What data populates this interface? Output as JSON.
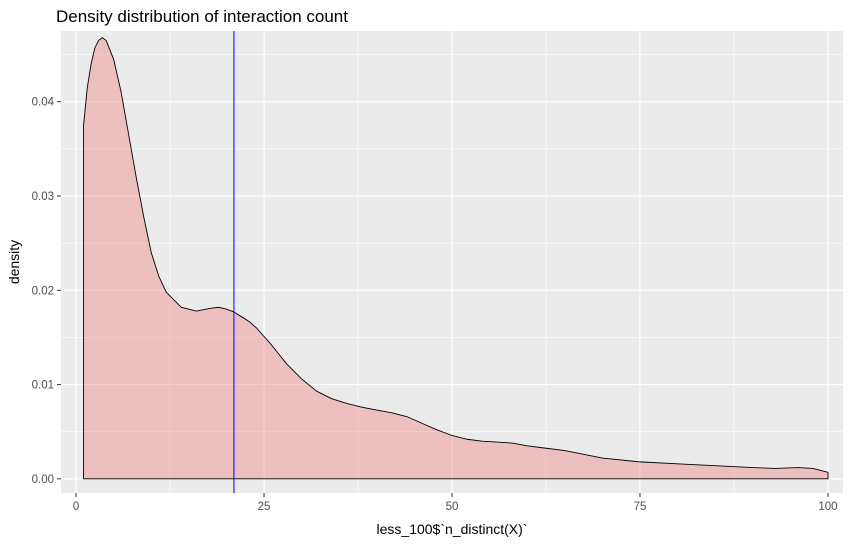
{
  "chart_data": {
    "type": "area",
    "title": "Density distribution of interaction count",
    "xlabel": "less_100$`n_distinct(X)`",
    "ylabel": "density",
    "xlim": [
      -2,
      102
    ],
    "ylim": [
      -0.0015,
      0.0475
    ],
    "x_ticks": [
      0,
      25,
      50,
      75,
      100
    ],
    "x_tick_labels": [
      "0",
      "25",
      "50",
      "75",
      "100"
    ],
    "y_ticks": [
      0.0,
      0.01,
      0.02,
      0.03,
      0.04
    ],
    "y_tick_labels": [
      "0.00",
      "0.01",
      "0.02",
      "0.03",
      "0.04"
    ],
    "grid": true,
    "vline_x": 21,
    "series": [
      {
        "x": [
          1,
          1.5,
          2,
          2.5,
          3,
          3.5,
          4,
          5,
          6,
          7,
          8,
          9,
          10,
          11,
          12,
          14,
          16,
          18,
          19,
          20,
          21,
          22,
          23,
          24,
          26,
          28,
          30,
          32,
          34,
          36,
          38,
          40,
          42,
          44,
          46,
          48,
          50,
          52,
          54,
          56,
          58,
          60,
          62,
          65,
          70,
          75,
          80,
          85,
          90,
          93,
          96,
          98,
          100
        ],
        "y": [
          0.0375,
          0.0415,
          0.044,
          0.0457,
          0.0465,
          0.0468,
          0.0465,
          0.0445,
          0.041,
          0.0365,
          0.032,
          0.0278,
          0.024,
          0.0215,
          0.0198,
          0.0182,
          0.0178,
          0.0181,
          0.0182,
          0.018,
          0.0177,
          0.0172,
          0.0167,
          0.016,
          0.0142,
          0.0122,
          0.0106,
          0.0093,
          0.0085,
          0.008,
          0.0076,
          0.0073,
          0.007,
          0.0066,
          0.0059,
          0.0052,
          0.0046,
          0.0042,
          0.004,
          0.0039,
          0.0038,
          0.0035,
          0.0033,
          0.003,
          0.0022,
          0.0018,
          0.0016,
          0.0014,
          0.0012,
          0.0011,
          0.0012,
          0.0011,
          0.0007
        ]
      }
    ],
    "colors": {
      "fill": "#f08080",
      "fill_opacity": 0.4,
      "outline": "#000000",
      "vline": "#0000ff",
      "panel_background": "#ebebeb",
      "grid_major": "#ffffff",
      "tick_label": "#4d4d4d"
    }
  }
}
